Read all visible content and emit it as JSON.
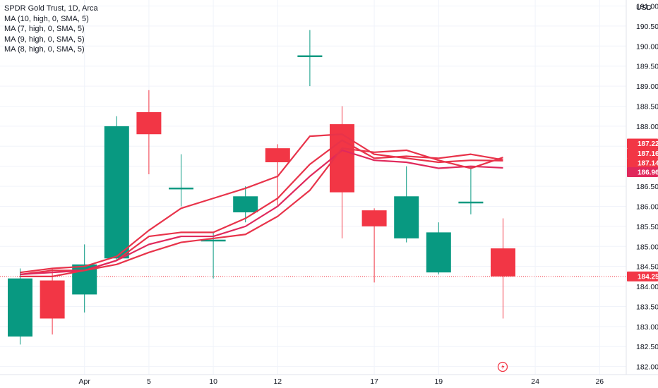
{
  "legend": {
    "title": "SPDR Gold Trust, 1D, Arca",
    "items": [
      "MA (10, high, 0, SMA, 5)",
      "MA (7, high, 0, SMA, 5)",
      "MA (9, high, 0, SMA, 5)",
      "MA (8, high, 0, SMA, 5)"
    ]
  },
  "colors": {
    "up": "#089981",
    "down": "#f23645",
    "ma": "#e8334a",
    "ma_alt": "#e0295c",
    "grid": "#f0f3fa",
    "axis_text": "#131722"
  },
  "chart_data": {
    "type": "candlestick",
    "currency": "USD",
    "ylim": [
      181.8,
      191.15
    ],
    "yticks": [
      182.0,
      182.5,
      183.0,
      183.5,
      184.0,
      184.5,
      185.0,
      185.5,
      186.0,
      186.5,
      187.0,
      187.5,
      188.0,
      188.5,
      189.0,
      189.5,
      190.0,
      190.5,
      191.0
    ],
    "xticks": [
      {
        "label": "Apr",
        "index": 2.0
      },
      {
        "label": "5",
        "index": 4.0
      },
      {
        "label": "10",
        "index": 6.0
      },
      {
        "label": "12",
        "index": 8.0
      },
      {
        "label": "17",
        "index": 11.0
      },
      {
        "label": "19",
        "index": 13.0
      },
      {
        "label": "24",
        "index": 16.0
      },
      {
        "label": "26",
        "index": 18.0
      }
    ],
    "candles": [
      {
        "o": 182.75,
        "h": 184.45,
        "l": 182.55,
        "c": 184.2
      },
      {
        "o": 184.15,
        "h": 184.45,
        "l": 182.8,
        "c": 183.2
      },
      {
        "o": 183.8,
        "h": 185.05,
        "l": 183.35,
        "c": 184.55
      },
      {
        "o": 184.7,
        "h": 188.25,
        "l": 184.65,
        "c": 188.0
      },
      {
        "o": 188.35,
        "h": 188.9,
        "l": 186.8,
        "c": 187.8
      },
      {
        "o": 186.45,
        "h": 187.3,
        "l": 186.0,
        "c": 186.45
      },
      {
        "o": 185.15,
        "h": 185.35,
        "l": 184.2,
        "c": 185.15
      },
      {
        "o": 185.85,
        "h": 186.5,
        "l": 185.6,
        "c": 186.25
      },
      {
        "o": 187.45,
        "h": 187.55,
        "l": 186.0,
        "c": 187.1
      },
      {
        "o": 189.75,
        "h": 190.4,
        "l": 189.0,
        "c": 189.75
      },
      {
        "o": 188.05,
        "h": 188.5,
        "l": 185.2,
        "c": 186.35
      },
      {
        "o": 185.9,
        "h": 185.95,
        "l": 184.1,
        "c": 185.5
      },
      {
        "o": 185.2,
        "h": 187.0,
        "l": 185.1,
        "c": 186.25
      },
      {
        "o": 184.35,
        "h": 185.6,
        "l": 184.3,
        "c": 185.35
      },
      {
        "o": 186.1,
        "h": 187.0,
        "l": 185.8,
        "c": 186.1
      },
      {
        "o": 184.95,
        "h": 185.7,
        "l": 183.2,
        "c": 184.25
      }
    ],
    "series": [
      {
        "name": "MA (10, high, 0, SMA, 5)",
        "values": [
          184.35,
          184.45,
          184.5,
          184.75,
          185.4,
          185.95,
          186.2,
          186.45,
          186.75,
          187.75,
          187.8,
          187.3,
          187.2,
          187.1,
          187.15,
          187.14
        ]
      },
      {
        "name": "MA (7, high, 0, SMA, 5)",
        "values": [
          184.3,
          184.4,
          184.4,
          184.65,
          185.25,
          185.35,
          185.35,
          185.7,
          186.2,
          187.05,
          187.65,
          187.2,
          187.25,
          187.2,
          187.3,
          187.16
        ]
      },
      {
        "name": "MA (9, high, 0, SMA, 5)",
        "values": [
          184.3,
          184.35,
          184.4,
          184.65,
          185.05,
          185.25,
          185.25,
          185.5,
          186.0,
          186.75,
          187.4,
          187.15,
          187.1,
          186.95,
          187.0,
          186.96
        ]
      },
      {
        "name": "MA (8, high, 0, SMA, 5)",
        "values": [
          184.25,
          184.25,
          184.4,
          184.55,
          184.85,
          185.1,
          185.2,
          185.3,
          185.75,
          186.4,
          187.45,
          187.35,
          187.4,
          187.15,
          186.95,
          187.22
        ]
      }
    ],
    "last_price": 184.25,
    "price_badges": [
      {
        "label": "187.22",
        "color": "#f23645"
      },
      {
        "label": "187.16",
        "color": "#f23645"
      },
      {
        "label": "187.14",
        "color": "#f23645"
      },
      {
        "label": "186.96",
        "color": "#e0295c"
      },
      {
        "label": "184.25",
        "color": "#f23645"
      }
    ]
  }
}
